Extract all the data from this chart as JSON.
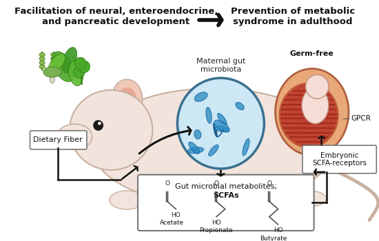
{
  "title_left": "Facilitation of neural, enteroendocrine,\nand pancreatic development",
  "title_right": "Prevention of metabolic\nsyndrome in adulthood",
  "label_dietary_fiber": "Dietary Fiber",
  "label_maternal_gut": "Maternal gut\nmicrobiota",
  "label_germ_free": "Germ-free",
  "label_gpcr": "GPCR",
  "label_embryonic": "Embryonic\nSCFA-receptors",
  "label_scfa_top": "Gut microbial metabolites;",
  "label_scfa_bold": "SCFAs",
  "label_acetate": "Acetate",
  "label_propionate": "Propionate",
  "label_butyrate": "Butyrate",
  "bg_color": "#ffffff",
  "rat_body_color": "#f2e4dc",
  "rat_ear_color": "#f0c8b8",
  "rat_ear_inner": "#e8a898",
  "rat_outline_color": "#c8b0a0",
  "microbiota_bg": "#cce8f5",
  "microbiota_edge": "#3a7090",
  "embryo_outer_color": "#e8a878",
  "embryo_ring_color": "#c05535",
  "embryo_body_color": "#f5ddd5",
  "box_edge_color": "#777777",
  "arrow_color": "#111111",
  "title_fontsize": 9.5,
  "label_fontsize": 8,
  "small_fontsize": 7.5,
  "chem_fontsize": 6.5
}
